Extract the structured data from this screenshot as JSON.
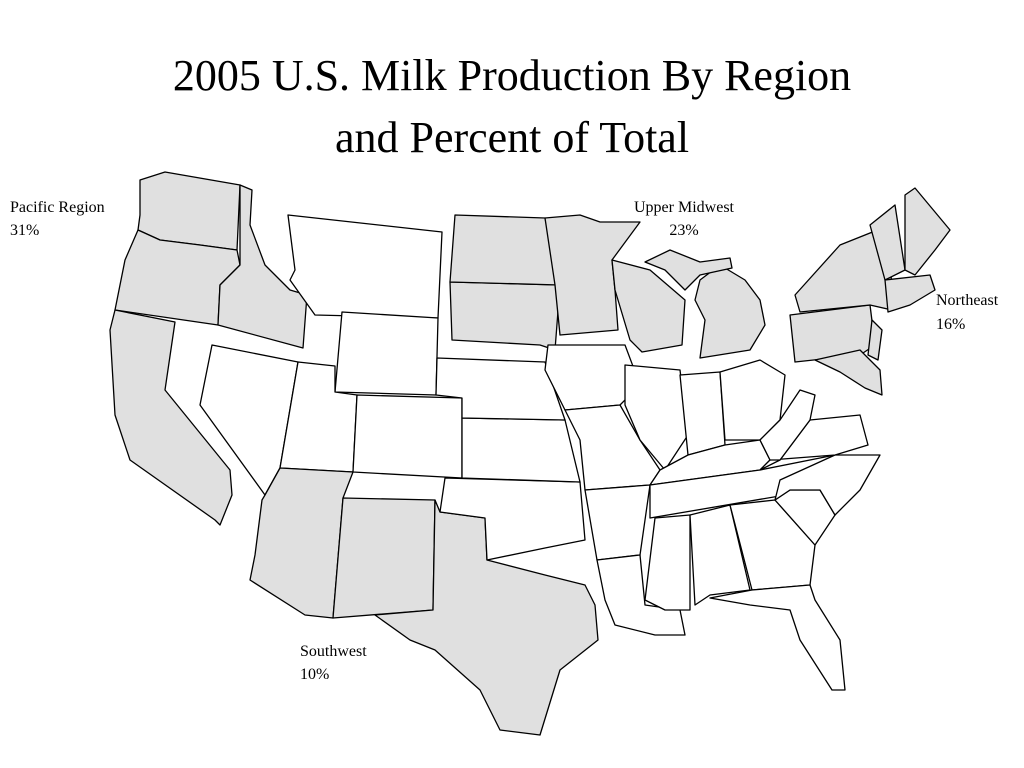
{
  "title": {
    "line1": "2005 U.S. Milk Production By Region",
    "line2": "and Percent of Total"
  },
  "regions": [
    {
      "name": "Pacific Region",
      "percent": "31%"
    },
    {
      "name": "Upper Midwest",
      "percent": "23%"
    },
    {
      "name": "Northeast",
      "percent": "16%"
    },
    {
      "name": "Southwest",
      "percent": "10%"
    }
  ]
}
